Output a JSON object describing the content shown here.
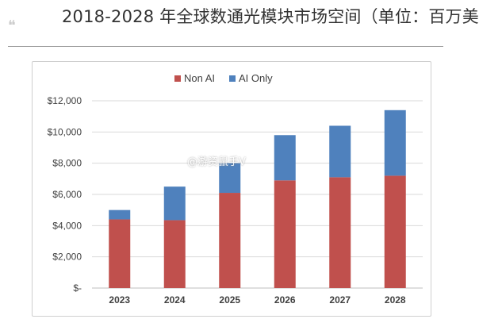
{
  "header": {
    "title": "2018-2028 年全球数通光模块市场空间（单位：百万美",
    "quote_glyph": "❝"
  },
  "watermark": "@游资鼠手V",
  "colors": {
    "non_ai": "#c0504d",
    "ai_only": "#4f81bd",
    "grid": "#d9d9d9",
    "axis_text": "#404040"
  },
  "chart_data": {
    "type": "bar",
    "stacked": true,
    "categories": [
      "2023",
      "2024",
      "2025",
      "2026",
      "2027",
      "2028"
    ],
    "series": [
      {
        "name": "Non AI",
        "values": [
          4400,
          4350,
          6100,
          6900,
          7100,
          7200
        ]
      },
      {
        "name": "AI Only",
        "values": [
          600,
          2150,
          1900,
          2900,
          3300,
          4200
        ]
      }
    ],
    "ylim": [
      0,
      12000
    ],
    "yticks": [
      0,
      2000,
      4000,
      6000,
      8000,
      10000,
      12000
    ],
    "ytick_labels": [
      "$-",
      "$2,000",
      "$4,000",
      "$6,000",
      "$8,000",
      "$10,000",
      "$12,000"
    ],
    "grid": true,
    "legend_position": "top-center"
  }
}
